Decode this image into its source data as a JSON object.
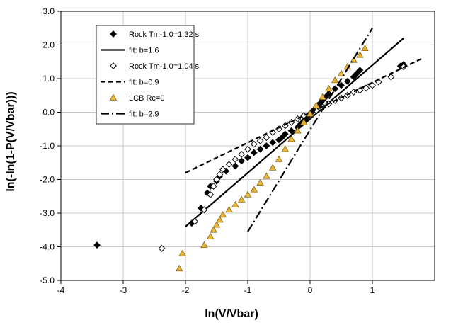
{
  "chart_data": {
    "type": "scatter",
    "title": "",
    "xlabel": "ln(V/Vbar)",
    "ylabel": "ln(-ln(1-P(V/Vbar)))",
    "xlim": [
      -4,
      2
    ],
    "ylim": [
      -5,
      3
    ],
    "xticks": [
      -4,
      -3,
      -2,
      -1,
      0,
      1
    ],
    "xtick_labels": [
      "-4",
      "-3",
      "-2",
      "-1",
      "0",
      "1"
    ],
    "yticks": [
      -5,
      -4,
      -3,
      -2,
      -1,
      0,
      1,
      2,
      3
    ],
    "ytick_labels": [
      "-5.0",
      "-4.0",
      "-3.0",
      "-2.0",
      "-1.0",
      "0.0",
      "1.0",
      "2.0",
      "3.0"
    ],
    "grid": "vertical and horizontal",
    "legend_position": "top-left",
    "series": [
      {
        "name": "Rock Tm-1,0=1.32 s",
        "kind": "points",
        "marker": "diamond-filled",
        "color": "#000000",
        "x": [
          -3.42,
          -1.9,
          -1.75,
          -1.65,
          -1.6,
          -1.5,
          -1.45,
          -1.35,
          -1.2,
          -1.1,
          -1.0,
          -0.9,
          -0.8,
          -0.7,
          -0.6,
          -0.5,
          -0.45,
          -0.4,
          -0.3,
          -0.2,
          -0.15,
          -0.1,
          -0.05,
          0.0,
          0.05,
          0.1,
          0.15,
          0.2,
          0.25,
          0.3,
          0.4,
          0.5,
          0.6,
          0.7,
          0.75,
          0.8,
          1.45,
          1.5
        ],
        "y": [
          -3.95,
          -3.3,
          -2.85,
          -2.4,
          -2.2,
          -2.05,
          -1.9,
          -1.75,
          -1.6,
          -1.45,
          -1.35,
          -1.2,
          -1.1,
          -1.0,
          -0.9,
          -0.82,
          -0.75,
          -0.65,
          -0.55,
          -0.45,
          -0.35,
          -0.25,
          -0.15,
          -0.05,
          0.05,
          0.15,
          0.25,
          0.35,
          0.45,
          0.55,
          0.7,
          0.8,
          0.92,
          1.05,
          1.15,
          1.25,
          1.37,
          1.42
        ]
      },
      {
        "name": "fit: b=1.6",
        "kind": "line",
        "style": "solid",
        "color": "#000000",
        "x": [
          -2.0,
          1.5
        ],
        "y": [
          -3.4,
          2.2
        ]
      },
      {
        "name": "Rock Tm-1,0=1.04 s",
        "kind": "points",
        "marker": "diamond-open",
        "color": "#000000",
        "x": [
          -2.38,
          -1.85,
          -1.7,
          -1.6,
          -1.55,
          -1.5,
          -1.45,
          -1.4,
          -1.3,
          -1.2,
          -1.1,
          -1.0,
          -0.9,
          -0.8,
          -0.7,
          -0.6,
          -0.5,
          -0.4,
          -0.3,
          -0.2,
          -0.1,
          0.0,
          0.1,
          0.2,
          0.3,
          0.4,
          0.5,
          0.6,
          0.7,
          0.8,
          0.9,
          1.0,
          1.1,
          1.3,
          1.5
        ],
        "y": [
          -4.05,
          -3.25,
          -2.9,
          -2.45,
          -2.2,
          -2.0,
          -1.85,
          -1.7,
          -1.55,
          -1.4,
          -1.25,
          -1.1,
          -0.95,
          -0.85,
          -0.75,
          -0.6,
          -0.5,
          -0.4,
          -0.3,
          -0.2,
          -0.1,
          -0.05,
          0.05,
          0.15,
          0.25,
          0.35,
          0.42,
          0.5,
          0.6,
          0.65,
          0.72,
          0.8,
          0.9,
          1.05,
          1.35
        ]
      },
      {
        "name": "fit: b=0.9",
        "kind": "line",
        "style": "dashed",
        "color": "#000000",
        "x": [
          -2.0,
          1.8
        ],
        "y": [
          -1.8,
          1.6
        ]
      },
      {
        "name": "LCB Rc=0",
        "kind": "points",
        "marker": "triangle",
        "color": "#E8B33A",
        "x": [
          -2.1,
          -2.05,
          -1.7,
          -1.6,
          -1.55,
          -1.5,
          -1.45,
          -1.4,
          -1.3,
          -1.2,
          -1.1,
          -1.0,
          -0.9,
          -0.8,
          -0.7,
          -0.6,
          -0.5,
          -0.4,
          -0.3,
          -0.2,
          -0.1,
          0.0,
          0.1,
          0.2,
          0.3,
          0.4,
          0.5,
          0.6,
          0.7,
          0.8,
          0.88
        ],
        "y": [
          -4.65,
          -4.2,
          -3.95,
          -3.7,
          -3.5,
          -3.35,
          -3.2,
          -3.05,
          -2.9,
          -2.75,
          -2.6,
          -2.45,
          -2.3,
          -2.1,
          -1.9,
          -1.65,
          -1.4,
          -1.1,
          -0.8,
          -0.55,
          -0.3,
          -0.05,
          0.2,
          0.45,
          0.7,
          0.95,
          1.15,
          1.35,
          1.55,
          1.7,
          1.9
        ]
      },
      {
        "name": "fit: b=2.9",
        "kind": "line",
        "style": "dashdot",
        "color": "#000000",
        "x": [
          -1.0,
          1.0
        ],
        "y": [
          -3.55,
          2.5
        ]
      }
    ]
  }
}
